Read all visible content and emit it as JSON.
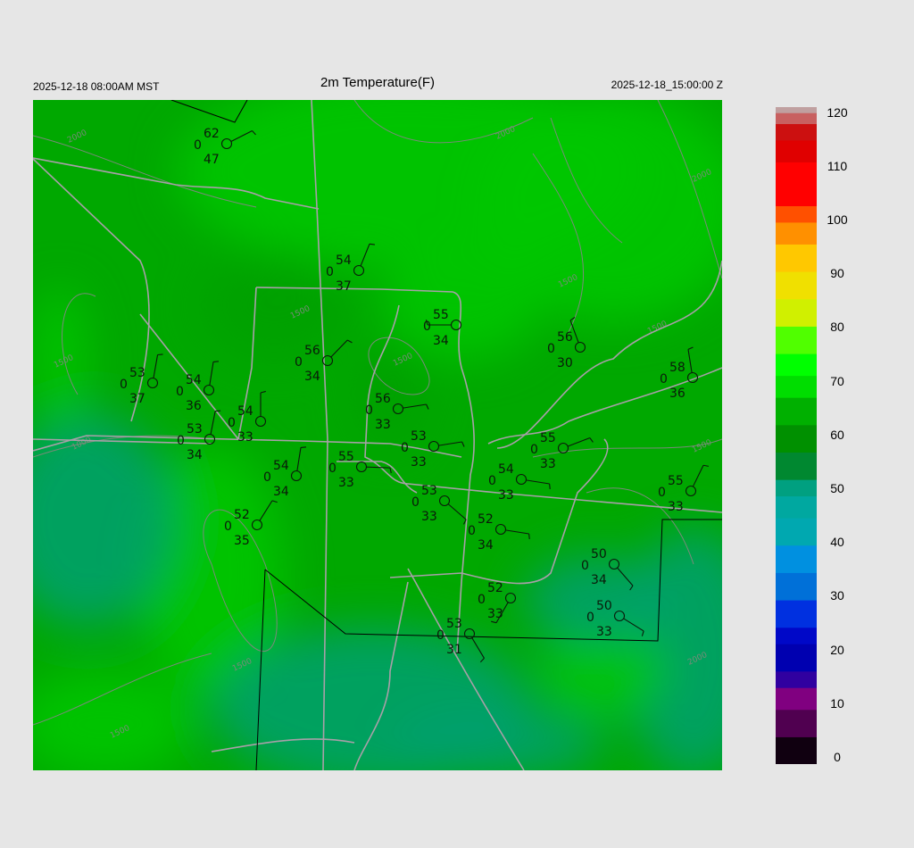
{
  "header": {
    "local_time": "2025-12-18 08:00AM MST",
    "title": "2m Temperature(F)",
    "valid_time": "2025-12-18_15:00:00 Z"
  },
  "colorbar": {
    "min": 0,
    "max": 120,
    "ticks": [
      "0",
      "10",
      "20",
      "30",
      "40",
      "50",
      "60",
      "70",
      "80",
      "90",
      "100",
      "110",
      "120"
    ],
    "stops": [
      [
        0,
        "#100010"
      ],
      [
        5,
        "#500050"
      ],
      [
        10,
        "#800080"
      ],
      [
        14,
        "#3000a0"
      ],
      [
        17,
        "#0000b0"
      ],
      [
        22,
        "#0008c8"
      ],
      [
        25,
        "#0030e0"
      ],
      [
        30,
        "#0070d8"
      ],
      [
        35,
        "#0090e0"
      ],
      [
        40,
        "#00a8b0"
      ],
      [
        45,
        "#00a8a0"
      ],
      [
        49,
        "#00a080"
      ],
      [
        52,
        "#008830"
      ],
      [
        57,
        "#009000"
      ],
      [
        62,
        "#00b000"
      ],
      [
        67,
        "#00dd00"
      ],
      [
        71,
        "#00ff00"
      ],
      [
        75,
        "#50ff00"
      ],
      [
        80,
        "#d0f000"
      ],
      [
        85,
        "#f0e000"
      ],
      [
        90,
        "#ffc800"
      ],
      [
        95,
        "#ff9000"
      ],
      [
        99,
        "#ff5000"
      ],
      [
        102,
        "#ff0000"
      ],
      [
        110,
        "#e00000"
      ],
      [
        114,
        "#cc1010"
      ],
      [
        117,
        "#c86060"
      ],
      [
        119,
        "#c0a0a0"
      ],
      [
        120,
        "#c8c8c8"
      ]
    ]
  },
  "map": {
    "field_colors": {
      "high": "#00c800",
      "mid": "#00a000",
      "low": "#00a070"
    },
    "road_color": "#a8a0a8",
    "contour_color": "#7a8a7a",
    "contour_labels": [
      "2000",
      "2000",
      "2000",
      "1500",
      "1500",
      "1500",
      "1000",
      "1500",
      "1500",
      "1500",
      "1500",
      "2000",
      "1500"
    ]
  },
  "stations": [
    {
      "temp": "62",
      "sky": "0",
      "dew": "47",
      "wind_dir": 63
    },
    {
      "temp": "54",
      "sky": "0",
      "dew": "37",
      "wind_dir": 22
    },
    {
      "temp": "55",
      "sky": "0",
      "dew": "34",
      "wind_dir": 270
    },
    {
      "temp": "56",
      "sky": "0",
      "dew": "30",
      "wind_dir": 340
    },
    {
      "temp": "58",
      "sky": "0",
      "dew": "36",
      "wind_dir": 351
    },
    {
      "temp": "53",
      "sky": "0",
      "dew": "37",
      "wind_dir": 10
    },
    {
      "temp": "54",
      "sky": "0",
      "dew": "36",
      "wind_dir": 9
    },
    {
      "temp": "54",
      "sky": "0",
      "dew": "33",
      "wind_dir": 0
    },
    {
      "temp": "53",
      "sky": "0",
      "dew": "34",
      "wind_dir": 11
    },
    {
      "temp": "56",
      "sky": "0",
      "dew": "34",
      "wind_dir": 44
    },
    {
      "temp": "56",
      "sky": "0",
      "dew": "33",
      "wind_dir": 81
    },
    {
      "temp": "53",
      "sky": "0",
      "dew": "33",
      "wind_dir": 81
    },
    {
      "temp": "55",
      "sky": "0",
      "dew": "33",
      "wind_dir": 92
    },
    {
      "temp": "54",
      "sky": "0",
      "dew": "34",
      "wind_dir": 9
    },
    {
      "temp": "55",
      "sky": "0",
      "dew": "33",
      "wind_dir": 69
    },
    {
      "temp": "54",
      "sky": "0",
      "dew": "33",
      "wind_dir": 99
    },
    {
      "temp": "53",
      "sky": "0",
      "dew": "33",
      "wind_dir": 131
    },
    {
      "temp": "52",
      "sky": "0",
      "dew": "34",
      "wind_dir": 99
    },
    {
      "temp": "52",
      "sky": "0",
      "dew": "35",
      "wind_dir": 32
    },
    {
      "temp": "55",
      "sky": "0",
      "dew": "33",
      "wind_dir": 26
    },
    {
      "temp": "50",
      "sky": "0",
      "dew": "34",
      "wind_dir": 139
    },
    {
      "temp": "52",
      "sky": "0",
      "dew": "33",
      "wind_dir": 210
    },
    {
      "temp": "50",
      "sky": "0",
      "dew": "33",
      "wind_dir": 122
    },
    {
      "temp": "53",
      "sky": "0",
      "dew": "31",
      "wind_dir": 149
    }
  ]
}
